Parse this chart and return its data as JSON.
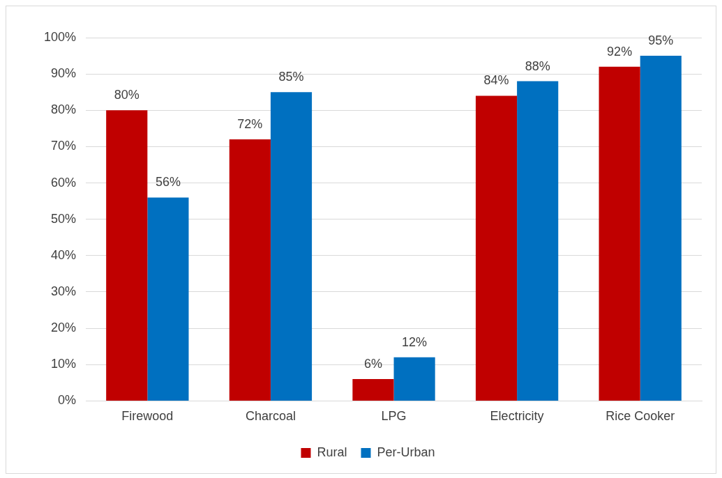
{
  "chart_data": {
    "type": "bar",
    "categories": [
      "Firewood",
      "Charcoal",
      "LPG",
      "Electricity",
      "Rice Cooker"
    ],
    "series": [
      {
        "name": "Rural",
        "color": "#c00000",
        "values": [
          80,
          72,
          6,
          84,
          92
        ],
        "value_labels": [
          "80%",
          "72%",
          "6%",
          "84%",
          "92%"
        ]
      },
      {
        "name": "Per-Urban",
        "color": "#0070c0",
        "values": [
          56,
          85,
          12,
          88,
          95
        ],
        "value_labels": [
          "56%",
          "85%",
          "12%",
          "88%",
          "95%"
        ]
      }
    ],
    "ylim": [
      0,
      100
    ],
    "yticks": [
      {
        "value": 0,
        "label": "0%"
      },
      {
        "value": 10,
        "label": "10%"
      },
      {
        "value": 20,
        "label": "20%"
      },
      {
        "value": 30,
        "label": "30%"
      },
      {
        "value": 40,
        "label": "40%"
      },
      {
        "value": 50,
        "label": "50%"
      },
      {
        "value": 60,
        "label": "60%"
      },
      {
        "value": 70,
        "label": "70%"
      },
      {
        "value": 80,
        "label": "80%"
      },
      {
        "value": 90,
        "label": "90%"
      },
      {
        "value": 100,
        "label": "100%"
      }
    ],
    "grid": "y",
    "legend": "bottom"
  }
}
